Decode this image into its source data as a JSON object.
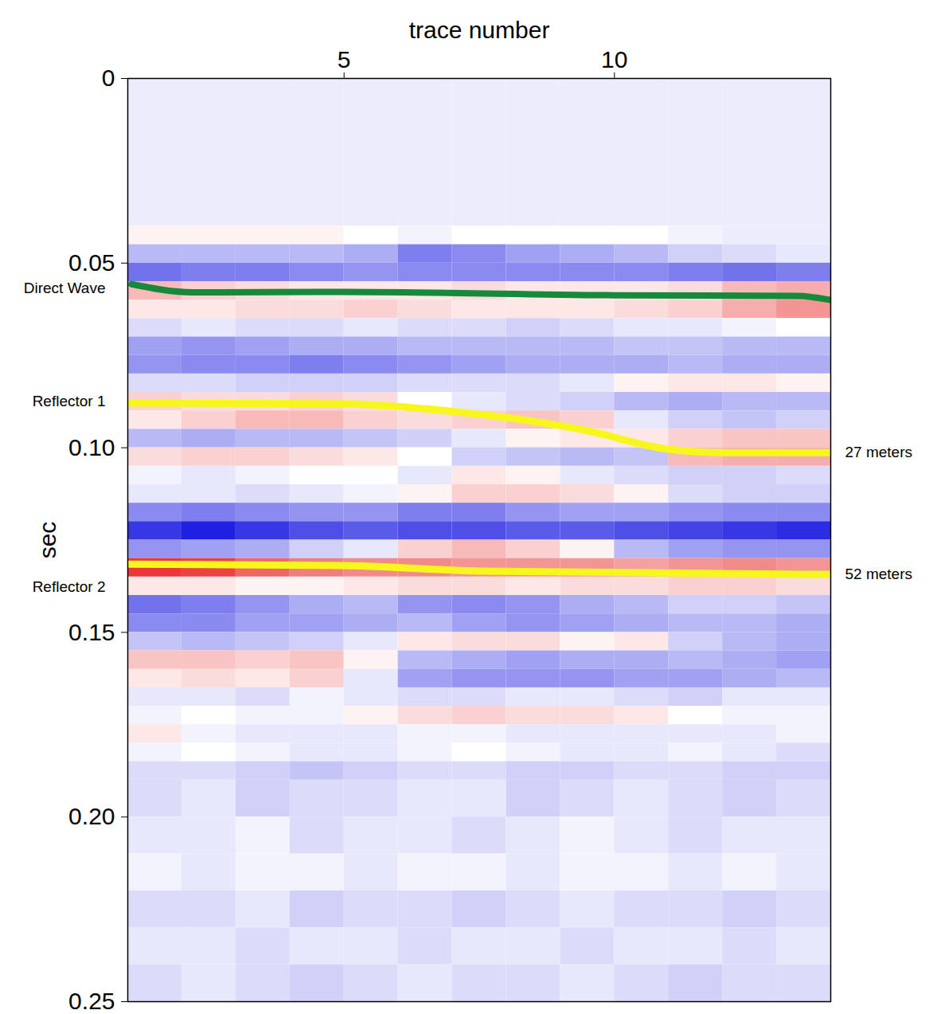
{
  "chart_data": {
    "type": "heatmap",
    "x_label": "trace number",
    "y_label": "sec",
    "xlim": [
      1,
      14
    ],
    "ylim": [
      0,
      0.25
    ],
    "xticks": [
      5,
      10
    ],
    "yticks": [
      0,
      0.05,
      {
        "value": 0.1,
        "label": "0.10"
      },
      0.15,
      {
        "value": 0.2,
        "label": "0.20"
      },
      0.25
    ],
    "cell_range": [
      -1,
      1
    ],
    "x_edges": [
      1,
      2,
      3,
      4,
      5,
      6,
      7,
      8,
      9,
      10,
      11,
      12,
      13,
      14
    ],
    "y_edges": [
      0,
      0.04,
      0.045,
      0.05,
      0.055,
      0.06,
      0.065,
      0.07,
      0.075,
      0.08,
      0.085,
      0.09,
      0.095,
      0.1,
      0.105,
      0.11,
      0.115,
      0.12,
      0.125,
      0.13,
      0.135,
      0.14,
      0.145,
      0.15,
      0.155,
      0.16,
      0.165,
      0.17,
      0.175,
      0.18,
      0.185,
      0.19,
      0.2,
      0.21,
      0.22,
      0.23,
      0.24,
      0.25
    ],
    "cells": [
      [
        -0.08,
        -0.08,
        -0.08,
        -0.08,
        -0.08,
        -0.08,
        -0.08,
        -0.08,
        -0.08,
        -0.08,
        -0.08,
        -0.08,
        -0.08
      ],
      [
        0.05,
        0.05,
        0.05,
        0.05,
        0.0,
        -0.05,
        0.0,
        0.0,
        0.0,
        0.0,
        -0.05,
        -0.08,
        -0.08
      ],
      [
        -0.3,
        -0.3,
        -0.3,
        -0.3,
        -0.35,
        -0.55,
        -0.5,
        -0.4,
        -0.35,
        -0.3,
        -0.2,
        -0.15,
        -0.1
      ],
      [
        -0.6,
        -0.55,
        -0.55,
        -0.5,
        -0.45,
        -0.5,
        -0.5,
        -0.5,
        -0.5,
        -0.5,
        -0.55,
        -0.6,
        -0.55
      ],
      [
        0.3,
        0.2,
        0.15,
        0.1,
        0.1,
        0.1,
        0.15,
        0.1,
        0.1,
        0.1,
        0.15,
        0.3,
        0.35
      ],
      [
        0.1,
        0.1,
        0.15,
        0.15,
        0.2,
        0.15,
        0.1,
        0.1,
        0.1,
        0.15,
        0.2,
        0.35,
        0.45
      ],
      [
        -0.15,
        -0.1,
        -0.15,
        -0.15,
        -0.1,
        -0.15,
        -0.15,
        -0.2,
        -0.15,
        -0.1,
        -0.1,
        -0.05,
        0.0
      ],
      [
        -0.4,
        -0.45,
        -0.4,
        -0.35,
        -0.35,
        -0.3,
        -0.3,
        -0.3,
        -0.3,
        -0.25,
        -0.25,
        -0.3,
        -0.3
      ],
      [
        -0.45,
        -0.5,
        -0.5,
        -0.55,
        -0.5,
        -0.45,
        -0.4,
        -0.35,
        -0.35,
        -0.35,
        -0.3,
        -0.35,
        -0.35
      ],
      [
        -0.15,
        -0.15,
        -0.2,
        -0.2,
        -0.2,
        -0.15,
        -0.15,
        -0.15,
        -0.1,
        0.05,
        0.1,
        0.1,
        0.05
      ],
      [
        0.2,
        0.15,
        0.15,
        0.2,
        0.15,
        0.0,
        -0.1,
        -0.15,
        -0.2,
        -0.3,
        -0.35,
        -0.3,
        -0.3
      ],
      [
        0.1,
        0.2,
        0.3,
        0.3,
        0.2,
        0.15,
        0.2,
        0.25,
        0.2,
        -0.1,
        -0.2,
        -0.25,
        -0.2
      ],
      [
        -0.3,
        -0.35,
        -0.3,
        -0.3,
        -0.25,
        -0.2,
        -0.1,
        0.05,
        0.1,
        0.1,
        0.2,
        0.25,
        0.25
      ],
      [
        0.15,
        0.2,
        0.2,
        0.15,
        0.1,
        0.0,
        -0.2,
        -0.25,
        -0.3,
        -0.25,
        0.3,
        0.35,
        0.35
      ],
      [
        -0.05,
        -0.1,
        -0.05,
        0.0,
        0.0,
        -0.1,
        0.1,
        0.05,
        -0.1,
        -0.15,
        -0.2,
        -0.2,
        -0.15
      ],
      [
        -0.1,
        -0.1,
        -0.15,
        -0.1,
        -0.05,
        0.05,
        0.2,
        0.2,
        0.15,
        0.05,
        -0.15,
        -0.2,
        -0.2
      ],
      [
        -0.5,
        -0.55,
        -0.5,
        -0.45,
        -0.45,
        -0.55,
        -0.55,
        -0.45,
        -0.4,
        -0.4,
        -0.45,
        -0.5,
        -0.5
      ],
      [
        -0.85,
        -0.95,
        -0.85,
        -0.75,
        -0.7,
        -0.75,
        -0.75,
        -0.7,
        -0.7,
        -0.75,
        -0.8,
        -0.85,
        -0.9
      ],
      [
        -0.45,
        -0.4,
        -0.35,
        -0.2,
        -0.1,
        0.2,
        0.3,
        0.2,
        0.05,
        -0.3,
        -0.4,
        -0.45,
        -0.45
      ],
      [
        0.85,
        0.8,
        0.65,
        0.55,
        0.5,
        0.5,
        0.45,
        0.45,
        0.45,
        0.4,
        0.45,
        0.5,
        0.45
      ],
      [
        0.1,
        0.1,
        0.05,
        0.05,
        0.1,
        0.15,
        0.15,
        0.1,
        0.15,
        0.15,
        0.2,
        0.2,
        0.15
      ],
      [
        -0.6,
        -0.55,
        -0.45,
        -0.35,
        -0.3,
        -0.45,
        -0.5,
        -0.45,
        -0.35,
        -0.3,
        -0.2,
        -0.2,
        -0.25
      ],
      [
        -0.5,
        -0.5,
        -0.4,
        -0.4,
        -0.35,
        -0.3,
        -0.4,
        -0.45,
        -0.4,
        -0.35,
        -0.3,
        -0.3,
        -0.35
      ],
      [
        -0.25,
        -0.3,
        -0.25,
        -0.2,
        -0.1,
        0.1,
        0.15,
        0.15,
        0.05,
        0.1,
        -0.2,
        -0.3,
        -0.35
      ],
      [
        0.25,
        0.25,
        0.2,
        0.25,
        0.05,
        -0.3,
        -0.35,
        -0.4,
        -0.35,
        -0.35,
        -0.3,
        -0.35,
        -0.4
      ],
      [
        0.1,
        0.15,
        0.1,
        0.2,
        -0.1,
        -0.4,
        -0.45,
        -0.45,
        -0.45,
        -0.4,
        -0.4,
        -0.35,
        -0.3
      ],
      [
        -0.1,
        -0.1,
        -0.15,
        -0.05,
        -0.1,
        -0.15,
        -0.15,
        -0.1,
        -0.1,
        -0.15,
        -0.2,
        -0.1,
        -0.1
      ],
      [
        -0.05,
        0.0,
        -0.05,
        -0.05,
        0.05,
        0.15,
        0.2,
        0.15,
        0.15,
        0.1,
        0.0,
        -0.05,
        -0.05
      ],
      [
        0.1,
        -0.05,
        -0.1,
        -0.1,
        -0.1,
        -0.05,
        -0.05,
        -0.1,
        -0.1,
        -0.1,
        -0.1,
        -0.1,
        -0.05
      ],
      [
        -0.05,
        0.0,
        -0.05,
        -0.1,
        -0.1,
        -0.05,
        0.0,
        -0.05,
        -0.1,
        -0.1,
        -0.05,
        -0.1,
        -0.15
      ],
      [
        -0.15,
        -0.15,
        -0.2,
        -0.25,
        -0.2,
        -0.15,
        -0.15,
        -0.2,
        -0.2,
        -0.15,
        -0.15,
        -0.2,
        -0.2
      ],
      [
        -0.15,
        -0.1,
        -0.2,
        -0.15,
        -0.15,
        -0.1,
        -0.1,
        -0.2,
        -0.15,
        -0.1,
        -0.15,
        -0.2,
        -0.15
      ],
      [
        -0.1,
        -0.1,
        -0.05,
        -0.15,
        -0.1,
        -0.1,
        -0.15,
        -0.1,
        -0.05,
        -0.1,
        -0.15,
        -0.1,
        -0.1
      ],
      [
        -0.05,
        -0.1,
        -0.05,
        -0.05,
        -0.1,
        -0.05,
        -0.05,
        -0.1,
        -0.05,
        -0.05,
        -0.1,
        -0.05,
        -0.1
      ],
      [
        -0.15,
        -0.15,
        -0.1,
        -0.2,
        -0.15,
        -0.15,
        -0.2,
        -0.15,
        -0.1,
        -0.15,
        -0.15,
        -0.2,
        -0.15
      ],
      [
        -0.1,
        -0.1,
        -0.15,
        -0.1,
        -0.1,
        -0.15,
        -0.1,
        -0.1,
        -0.15,
        -0.1,
        -0.1,
        -0.15,
        -0.1
      ],
      [
        -0.15,
        -0.1,
        -0.15,
        -0.2,
        -0.15,
        -0.1,
        -0.15,
        -0.15,
        -0.1,
        -0.15,
        -0.2,
        -0.15,
        -0.15
      ]
    ],
    "series": [
      {
        "name": "Direct Wave",
        "color": "#168a3a",
        "type": "line",
        "x": [
          1.07,
          2.2,
          5,
          10,
          13.4,
          14
        ],
        "values": [
          0.0557,
          0.0579,
          0.0578,
          0.0587,
          0.0589,
          0.06
        ]
      },
      {
        "name": "Reflector 1",
        "color": "#f7f71e",
        "type": "line",
        "annotation": "27 meters",
        "x": [
          1,
          5,
          6.9,
          9.5,
          10.9,
          11.9,
          14
        ],
        "values": [
          0.0879,
          0.0881,
          0.09,
          0.0954,
          0.1002,
          0.1013,
          0.1013
        ]
      },
      {
        "name": "Reflector 2",
        "color": "#f7f71e",
        "type": "line",
        "annotation": "52 meters",
        "x": [
          1,
          5,
          7.5,
          14
        ],
        "values": [
          0.1315,
          0.1319,
          0.1334,
          0.1343
        ]
      }
    ]
  }
}
